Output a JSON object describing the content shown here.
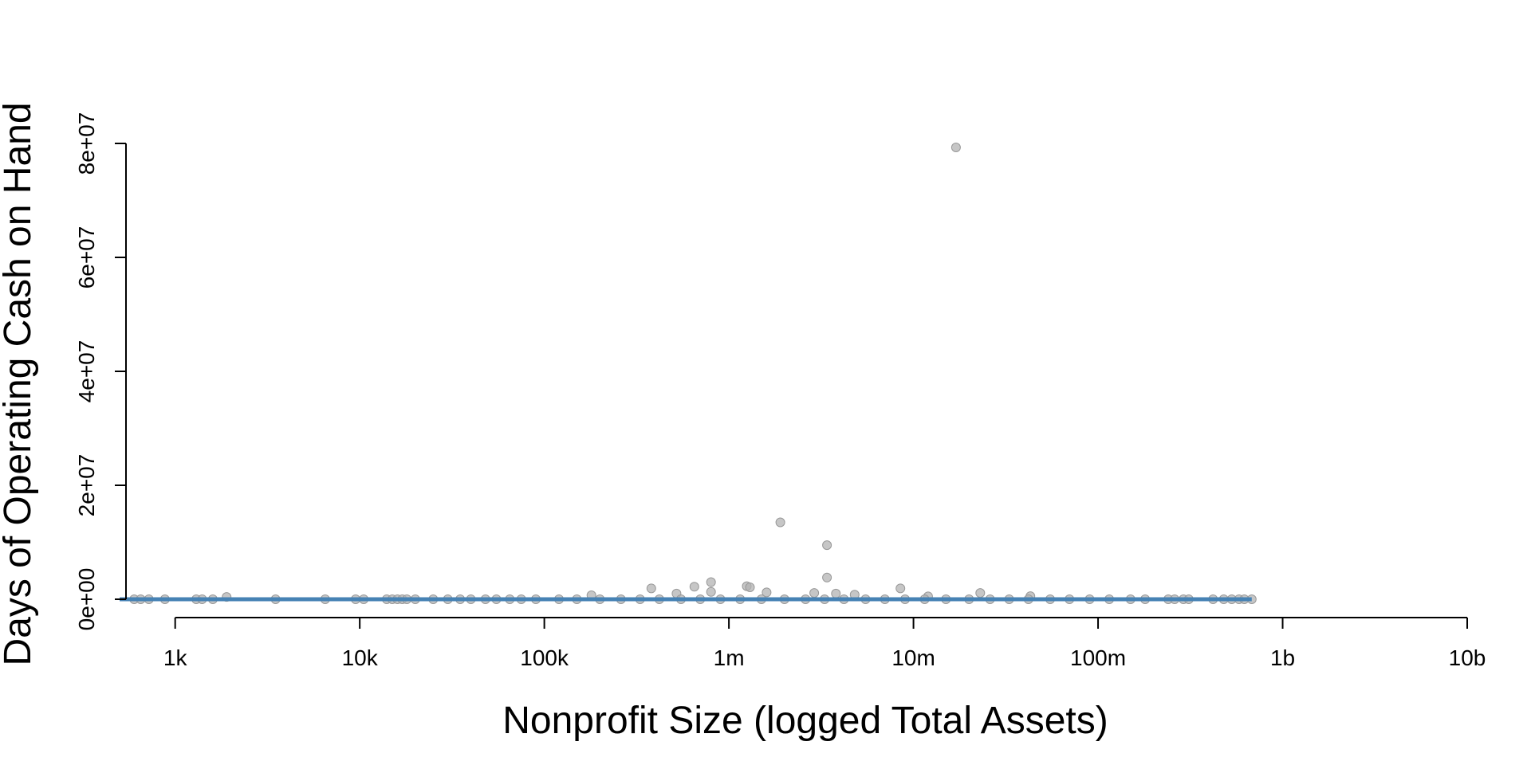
{
  "chart_data": {
    "type": "scatter",
    "title": "",
    "xlabel": "Nonprofit Size (logged Total Assets)",
    "ylabel": "Days of Operating Cash on Hand",
    "x_scale": "log10",
    "xlim": [
      500,
      10000000000
    ],
    "ylim": [
      0,
      80000000
    ],
    "x_ticks": [
      {
        "value": 1000,
        "label": "1k"
      },
      {
        "value": 10000,
        "label": "10k"
      },
      {
        "value": 100000,
        "label": "100k"
      },
      {
        "value": 1000000,
        "label": "1m"
      },
      {
        "value": 10000000,
        "label": "10m"
      },
      {
        "value": 100000000,
        "label": "100m"
      },
      {
        "value": 1000000000,
        "label": "1b"
      },
      {
        "value": 10000000000,
        "label": "10b"
      }
    ],
    "y_ticks": [
      {
        "value": 0,
        "label": "0e+00"
      },
      {
        "value": 20000000,
        "label": "2e+07"
      },
      {
        "value": 40000000,
        "label": "4e+07"
      },
      {
        "value": 60000000,
        "label": "6e+07"
      },
      {
        "value": 80000000,
        "label": "8e+07"
      }
    ],
    "grid": false,
    "point_color": "#b3b3b3",
    "line_color": "#4682b4",
    "points": [
      [
        17000000,
        79300000
      ],
      [
        1900000,
        13500000
      ],
      [
        3400000,
        9500000
      ],
      [
        3400000,
        3800000
      ],
      [
        800000,
        3000000
      ],
      [
        650000,
        2200000
      ],
      [
        1250000,
        2300000
      ],
      [
        1300000,
        2100000
      ],
      [
        380000,
        1900000
      ],
      [
        8500000,
        1900000
      ],
      [
        800000,
        1300000
      ],
      [
        23000000,
        1100000
      ],
      [
        1600000,
        1200000
      ],
      [
        2900000,
        1100000
      ],
      [
        3800000,
        1000000
      ],
      [
        520000,
        1000000
      ],
      [
        4800000,
        800000
      ],
      [
        180000,
        700000
      ],
      [
        43000000,
        550000
      ],
      [
        1900,
        400000
      ],
      [
        12000000,
        500000
      ],
      [
        600,
        0
      ],
      [
        650,
        0
      ],
      [
        720,
        0
      ],
      [
        880,
        0
      ],
      [
        1300,
        0
      ],
      [
        1400,
        0
      ],
      [
        1600,
        0
      ],
      [
        3500,
        0
      ],
      [
        6500,
        0
      ],
      [
        9500,
        0
      ],
      [
        10500,
        0
      ],
      [
        14000,
        0
      ],
      [
        15000,
        0
      ],
      [
        16000,
        0
      ],
      [
        17000,
        0
      ],
      [
        18000,
        0
      ],
      [
        20000,
        0
      ],
      [
        25000,
        0
      ],
      [
        30000,
        0
      ],
      [
        35000,
        0
      ],
      [
        40000,
        0
      ],
      [
        48000,
        0
      ],
      [
        55000,
        0
      ],
      [
        65000,
        0
      ],
      [
        75000,
        0
      ],
      [
        90000,
        0
      ],
      [
        120000,
        0
      ],
      [
        150000,
        0
      ],
      [
        200000,
        0
      ],
      [
        260000,
        0
      ],
      [
        330000,
        0
      ],
      [
        420000,
        0
      ],
      [
        550000,
        0
      ],
      [
        700000,
        0
      ],
      [
        900000,
        0
      ],
      [
        1150000,
        0
      ],
      [
        1500000,
        0
      ],
      [
        2000000,
        0
      ],
      [
        2600000,
        0
      ],
      [
        3300000,
        0
      ],
      [
        4200000,
        0
      ],
      [
        5500000,
        0
      ],
      [
        7000000,
        0
      ],
      [
        9000000,
        0
      ],
      [
        11500000,
        0
      ],
      [
        15000000,
        0
      ],
      [
        20000000,
        0
      ],
      [
        26000000,
        0
      ],
      [
        33000000,
        0
      ],
      [
        42000000,
        0
      ],
      [
        55000000,
        0
      ],
      [
        70000000,
        0
      ],
      [
        90000000,
        0
      ],
      [
        115000000,
        0
      ],
      [
        150000000,
        0
      ],
      [
        180000000,
        0
      ],
      [
        240000000,
        0
      ],
      [
        260000000,
        0
      ],
      [
        290000000,
        0
      ],
      [
        310000000,
        0
      ],
      [
        420000000,
        0
      ],
      [
        480000000,
        0
      ],
      [
        530000000,
        0
      ],
      [
        580000000,
        0
      ],
      [
        620000000,
        0
      ],
      [
        680000000,
        0
      ]
    ],
    "fit_line": [
      [
        500,
        0
      ],
      [
        680000000,
        0
      ]
    ]
  }
}
